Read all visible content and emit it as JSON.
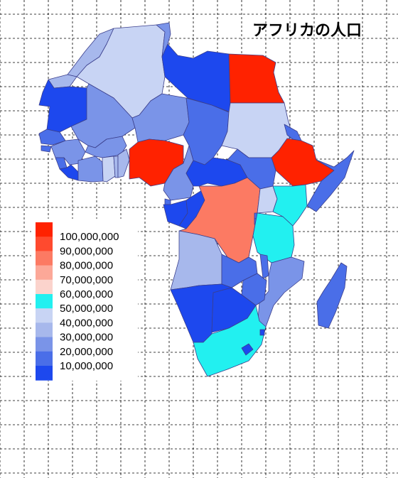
{
  "map": {
    "title": "アフリカの人口",
    "projection": "equirectangular",
    "grid": true,
    "legend": {
      "placement": "left-middle",
      "entries": [
        {
          "label": "100,000,000",
          "color": "#ff2200"
        },
        {
          "label": "90,000,000",
          "color": "#ff4a2e"
        },
        {
          "label": "80,000,000",
          "color": "#fc7a63"
        },
        {
          "label": "70,000,000",
          "color": "#fca898"
        },
        {
          "label": "60,000,000",
          "color": "#fbd3cc"
        },
        {
          "label": "50,000,000",
          "color": "#22f0f0"
        },
        {
          "label": "40,000,000",
          "color": "#c8d4f4"
        },
        {
          "label": "30,000,000",
          "color": "#a7b8ec"
        },
        {
          "label": "20,000,000",
          "color": "#7a94e8"
        },
        {
          "label": "10,000,000",
          "color": "#4a6ee8"
        },
        {
          "label": "",
          "color": "#1d48ee"
        }
      ]
    },
    "colors": {
      "background": "#ffffff",
      "grid": "#000000",
      "border": "#3b3f8c",
      "water": "#ffffff"
    }
  }
}
